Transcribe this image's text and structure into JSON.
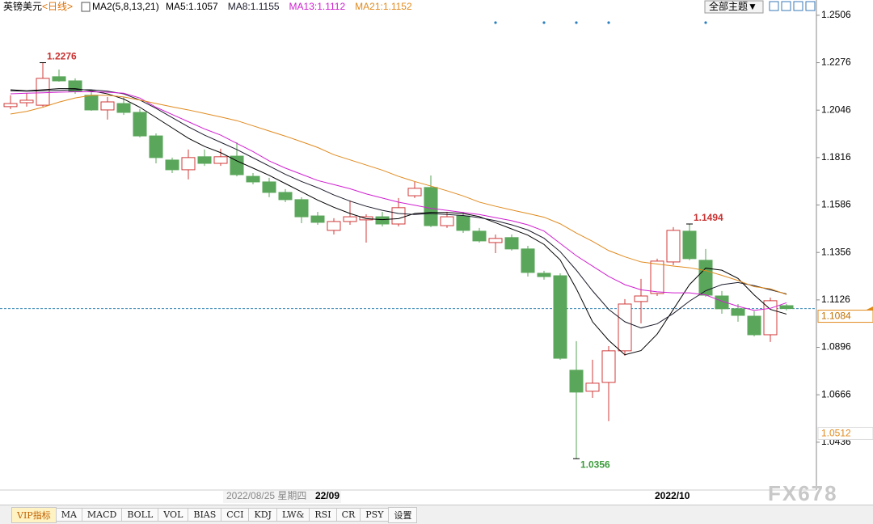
{
  "header": {
    "symbol": "英镑美元",
    "period": "<日线>",
    "ma_group": "MA2(5,8,13,21)",
    "theme_button": "全部主题▼"
  },
  "chart_data": {
    "type": "candlestick",
    "categories": [
      null,
      null,
      null,
      null,
      null,
      null,
      null,
      null,
      null,
      null,
      null,
      null,
      null,
      null,
      null,
      null,
      null,
      null,
      null,
      "22/09",
      null,
      null,
      null,
      null,
      null,
      null,
      null,
      null,
      null,
      null,
      null,
      null,
      null,
      null,
      null,
      null,
      null,
      null,
      null,
      null,
      "2022/10",
      null,
      null,
      null,
      null,
      null,
      null,
      null,
      null
    ],
    "cursor_date": "2022/08/25 星期四",
    "ohlc": {
      "open": [
        1.2063,
        1.2082,
        1.207,
        1.2208,
        1.2188,
        1.2118,
        1.2047,
        1.2078,
        1.2035,
        1.1921,
        1.1804,
        1.1757,
        1.182,
        1.1788,
        1.1823,
        1.1725,
        1.1698,
        1.1647,
        1.1612,
        1.1533,
        1.1463,
        1.1506,
        1.1514,
        1.1529,
        1.1494,
        1.1631,
        1.1671,
        1.1486,
        1.1533,
        1.1459,
        1.1404,
        1.1428,
        1.1373,
        1.1255,
        1.1243,
        1.0785,
        1.0683,
        1.0726,
        1.0879,
        1.1118,
        1.1157,
        1.131,
        1.1459,
        1.1318,
        1.1145,
        1.1083,
        1.1047,
        1.0957,
        1.1098
      ],
      "high": [
        1.2118,
        1.2129,
        1.2276,
        1.2243,
        1.22,
        1.2133,
        1.211,
        1.211,
        1.2051,
        1.1933,
        1.1816,
        1.1855,
        1.1855,
        1.1859,
        1.189,
        1.1741,
        1.1718,
        1.1663,
        1.1624,
        1.1553,
        1.1522,
        1.1608,
        1.1541,
        1.1553,
        1.162,
        1.1698,
        1.1729,
        1.1553,
        1.1553,
        1.1475,
        1.1443,
        1.1443,
        1.1388,
        1.1267,
        1.1255,
        1.0926,
        1.0836,
        1.0902,
        1.113,
        1.1228,
        1.1326,
        1.1479,
        1.1494,
        1.1373,
        1.1169,
        1.1106,
        1.1071,
        1.1137,
        1.1106
      ],
      "low": [
        1.2051,
        1.2063,
        1.2063,
        1.2184,
        1.2125,
        1.2043,
        1.2,
        1.2023,
        1.1914,
        1.1788,
        1.1741,
        1.171,
        1.1776,
        1.1776,
        1.1725,
        1.1686,
        1.1624,
        1.16,
        1.1498,
        1.149,
        1.1443,
        1.149,
        1.1404,
        1.1482,
        1.1482,
        1.162,
        1.1479,
        1.1475,
        1.1451,
        1.1404,
        1.1353,
        1.1365,
        1.1239,
        1.1224,
        1.0836,
        1.0356,
        1.0651,
        1.0538,
        1.0855,
        1.1012,
        1.1145,
        1.1294,
        1.1318,
        1.1141,
        1.1059,
        1.102,
        1.0949,
        1.0922,
        1.1075
      ],
      "close": [
        1.2078,
        1.2094,
        1.22,
        1.2188,
        1.2137,
        1.2047,
        1.2086,
        1.2035,
        1.1921,
        1.1816,
        1.1757,
        1.1816,
        1.1788,
        1.182,
        1.1733,
        1.1698,
        1.1647,
        1.1612,
        1.1529,
        1.1502,
        1.1506,
        1.1529,
        1.1529,
        1.1494,
        1.1573,
        1.1667,
        1.1486,
        1.1529,
        1.1463,
        1.1412,
        1.1424,
        1.1373,
        1.1259,
        1.1239,
        1.0843,
        1.0679,
        1.0722,
        1.0879,
        1.1106,
        1.1145,
        1.1314,
        1.1463,
        1.1326,
        1.1149,
        1.1083,
        1.1051,
        1.0957,
        1.1122,
        1.1084
      ]
    },
    "up_color": "#d03a3a",
    "down_color": "#5aa65a",
    "marked_highs": [
      2,
      42
    ],
    "marked_lows": [
      35
    ],
    "event_marks": [
      30,
      33,
      35,
      37,
      43
    ],
    "event_color": "#2a7fc0",
    "ma_series": [
      {
        "name": "MA5:1.1057",
        "color": "#000000",
        "values": [
          1.2145,
          1.214,
          1.2145,
          1.215,
          1.215,
          1.214,
          1.2125,
          1.21,
          1.206,
          1.201,
          1.196,
          1.191,
          1.187,
          1.184,
          1.18,
          1.1765,
          1.173,
          1.169,
          1.165,
          1.161,
          1.1575,
          1.1545,
          1.152,
          1.1515,
          1.152,
          1.1545,
          1.155,
          1.155,
          1.1545,
          1.153,
          1.15,
          1.147,
          1.144,
          1.1395,
          1.132,
          1.118,
          1.102,
          1.093,
          1.086,
          1.088,
          1.096,
          1.108,
          1.12,
          1.128,
          1.127,
          1.123,
          1.115,
          1.108,
          1.1057
        ]
      },
      {
        "name": "MA8:1.1155",
        "color": "#1a1a2a",
        "values": [
          1.214,
          1.2138,
          1.214,
          1.2142,
          1.2145,
          1.2145,
          1.2138,
          1.2125,
          1.2095,
          1.2055,
          1.201,
          1.1965,
          1.1925,
          1.189,
          1.1855,
          1.1815,
          1.1775,
          1.1735,
          1.17,
          1.167,
          1.1635,
          1.1605,
          1.158,
          1.156,
          1.1545,
          1.154,
          1.1545,
          1.154,
          1.1535,
          1.1525,
          1.151,
          1.149,
          1.1465,
          1.1425,
          1.136,
          1.127,
          1.117,
          1.108,
          1.102,
          1.099,
          1.101,
          1.106,
          1.112,
          1.117,
          1.12,
          1.121,
          1.1195,
          1.1175,
          1.1155
        ]
      },
      {
        "name": "MA13:1.1112",
        "color": "#d020d0",
        "values": [
          1.2125,
          1.2128,
          1.213,
          1.2133,
          1.2135,
          1.2135,
          1.2133,
          1.2128,
          1.2105,
          1.206,
          1.2025,
          1.199,
          1.1955,
          1.1925,
          1.1885,
          1.1845,
          1.18,
          1.1765,
          1.1735,
          1.1705,
          1.1685,
          1.1665,
          1.164,
          1.162,
          1.16,
          1.1585,
          1.157,
          1.156,
          1.155,
          1.154,
          1.1525,
          1.151,
          1.149,
          1.146,
          1.14,
          1.134,
          1.129,
          1.124,
          1.12,
          1.1175,
          1.1165,
          1.116,
          1.116,
          1.115,
          1.112,
          1.1095,
          1.1075,
          1.1085,
          1.1112
        ]
      },
      {
        "name": "MA21:1.1152",
        "color": "#e08a1e",
        "values": [
          1.2027,
          1.204,
          1.206,
          1.2085,
          1.2105,
          1.2118,
          1.2118,
          1.211,
          1.2095,
          1.2078,
          1.2062,
          1.2047,
          1.203,
          1.2013,
          1.1995,
          1.197,
          1.1945,
          1.192,
          1.1893,
          1.1865,
          1.183,
          1.1805,
          1.178,
          1.1755,
          1.1725,
          1.17,
          1.1678,
          1.1655,
          1.163,
          1.16,
          1.158,
          1.1562,
          1.1545,
          1.1527,
          1.1495,
          1.145,
          1.141,
          1.1365,
          1.1335,
          1.131,
          1.13,
          1.129,
          1.1282,
          1.1268,
          1.1245,
          1.122,
          1.119,
          1.118,
          1.1152
        ]
      }
    ],
    "last_price": 1.1084,
    "lower_marker": 1.0512,
    "ylim": [
      1.0208,
      1.258
    ],
    "yticks": [
      1.2506,
      1.2276,
      1.2046,
      1.1816,
      1.1586,
      1.1356,
      1.1126,
      1.0896,
      1.0666,
      1.0436
    ]
  },
  "tabs": [
    "VIP指标",
    "MA",
    "MACD",
    "BOLL",
    "VOL",
    "BIAS",
    "CCI",
    "KDJ",
    "LW&",
    "RSI",
    "CR",
    "PSY",
    "设置"
  ],
  "watermark": "FX678"
}
